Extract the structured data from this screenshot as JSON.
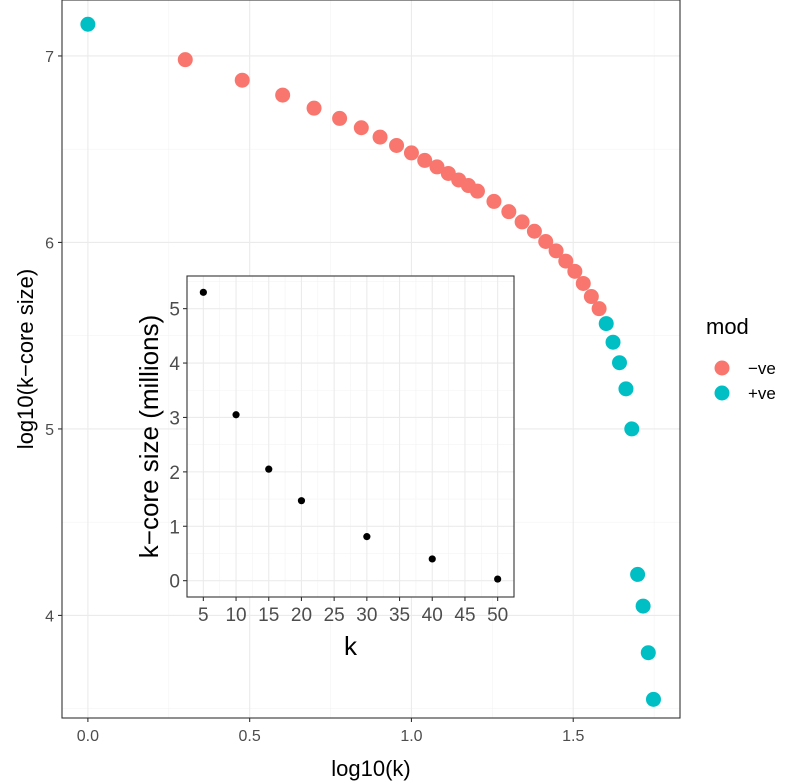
{
  "chart_data": [
    {
      "type": "scatter",
      "role": "main",
      "xlabel": "log10(k)",
      "ylabel": "log10(k−core size)",
      "xlim": [
        -0.08,
        1.83
      ],
      "ylim": [
        3.45,
        7.3
      ],
      "x_ticks": [
        0.0,
        0.5,
        1.0,
        1.5
      ],
      "x_tick_labels": [
        "0.0",
        "0.5",
        "1.0",
        "1.5"
      ],
      "y_ticks": [
        4,
        5,
        6,
        7
      ],
      "y_tick_labels": [
        "4",
        "5",
        "6",
        "7"
      ],
      "grid": true,
      "legend": {
        "title": "mod",
        "placement": "right",
        "entries": [
          {
            "label": "−ve",
            "color": "#F8766D"
          },
          {
            "label": "+ve",
            "color": "#00BFC4"
          }
        ]
      },
      "series": [
        {
          "name": "−ve",
          "color": "#F8766D",
          "points": [
            [
              0.301,
              6.98
            ],
            [
              0.477,
              6.87
            ],
            [
              0.602,
              6.79
            ],
            [
              0.699,
              6.72
            ],
            [
              0.778,
              6.665
            ],
            [
              0.845,
              6.615
            ],
            [
              0.903,
              6.565
            ],
            [
              0.954,
              6.52
            ],
            [
              1.0,
              6.48
            ],
            [
              1.041,
              6.44
            ],
            [
              1.079,
              6.405
            ],
            [
              1.114,
              6.37
            ],
            [
              1.146,
              6.335
            ],
            [
              1.176,
              6.305
            ],
            [
              1.204,
              6.275
            ],
            [
              1.255,
              6.22
            ],
            [
              1.301,
              6.165
            ],
            [
              1.342,
              6.11
            ],
            [
              1.38,
              6.06
            ],
            [
              1.415,
              6.005
            ],
            [
              1.447,
              5.955
            ],
            [
              1.477,
              5.9
            ],
            [
              1.505,
              5.845
            ],
            [
              1.531,
              5.78
            ],
            [
              1.556,
              5.71
            ],
            [
              1.58,
              5.645
            ]
          ]
        },
        {
          "name": "+ve",
          "color": "#00BFC4",
          "points": [
            [
              0.0,
              7.17
            ],
            [
              1.602,
              5.565
            ],
            [
              1.623,
              5.465
            ],
            [
              1.643,
              5.355
            ],
            [
              1.663,
              5.215
            ],
            [
              1.681,
              5.0
            ],
            [
              1.699,
              4.22
            ],
            [
              1.716,
              4.05
            ],
            [
              1.732,
              3.8
            ],
            [
              1.748,
              3.55
            ]
          ]
        }
      ]
    },
    {
      "type": "scatter",
      "role": "inset",
      "xlabel": "k",
      "ylabel": "k−core size (millions)",
      "xlim": [
        2.5,
        52.5
      ],
      "ylim": [
        -0.3,
        5.6
      ],
      "x_ticks": [
        5,
        10,
        15,
        20,
        25,
        30,
        35,
        40,
        45,
        50
      ],
      "x_tick_labels": [
        "5",
        "10",
        "15",
        "20",
        "25",
        "30",
        "35",
        "40",
        "45",
        "50"
      ],
      "y_ticks": [
        0,
        1,
        2,
        3,
        4,
        5
      ],
      "y_tick_labels": [
        "0",
        "1",
        "2",
        "3",
        "4",
        "5"
      ],
      "grid": true,
      "series": [
        {
          "color": "#000000",
          "points": [
            [
              5,
              5.3
            ],
            [
              10,
              3.05
            ],
            [
              15,
              2.05
            ],
            [
              20,
              1.47
            ],
            [
              30,
              0.81
            ],
            [
              40,
              0.4
            ],
            [
              50,
              0.03
            ]
          ]
        }
      ]
    }
  ]
}
